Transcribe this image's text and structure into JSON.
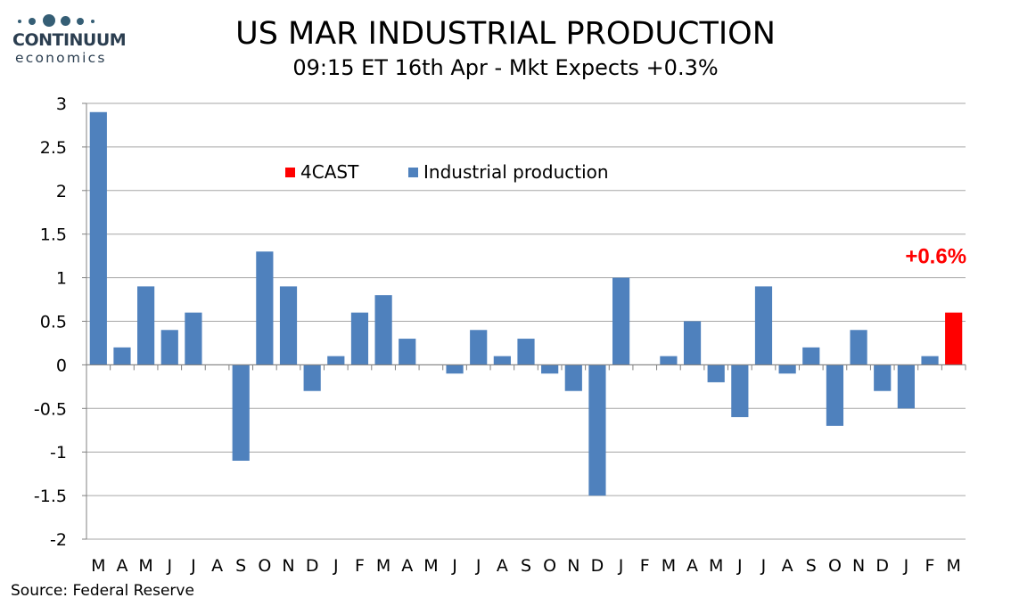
{
  "logo": {
    "brand_name": "CONTINUUM",
    "brand_sub": "economics",
    "color": "#355e75"
  },
  "header": {
    "title": "US MAR INDUSTRIAL PRODUCTION",
    "subtitle": "09:15 ET 16th Apr - Mkt Expects +0.3%"
  },
  "footer": {
    "source": "Source: Federal Reserve"
  },
  "chart_data": {
    "type": "bar",
    "categories": [
      "M",
      "A",
      "M",
      "J",
      "J",
      "A",
      "S",
      "O",
      "N",
      "D",
      "J",
      "F",
      "M",
      "A",
      "M",
      "J",
      "J",
      "A",
      "S",
      "O",
      "N",
      "D",
      "J",
      "F",
      "M",
      "A",
      "M",
      "J",
      "J",
      "A",
      "S",
      "O",
      "N",
      "D",
      "J",
      "F",
      "M"
    ],
    "series": [
      {
        "name": "Industrial production",
        "color": "#4f81bd",
        "values": [
          2.9,
          0.2,
          0.9,
          0.4,
          0.6,
          0,
          -1.1,
          1.3,
          0.9,
          -0.3,
          0.1,
          0.6,
          0.8,
          0.3,
          0,
          -0.1,
          0.4,
          0.1,
          0.3,
          -0.1,
          -0.3,
          -1.5,
          1.0,
          0,
          0.1,
          0.5,
          -0.2,
          -0.6,
          0.9,
          -0.1,
          0.2,
          -0.7,
          0.4,
          -0.3,
          -0.5,
          0.1,
          null
        ]
      },
      {
        "name": "4CAST",
        "color": "#ff0000",
        "values": [
          null,
          null,
          null,
          null,
          null,
          null,
          null,
          null,
          null,
          null,
          null,
          null,
          null,
          null,
          null,
          null,
          null,
          null,
          null,
          null,
          null,
          null,
          null,
          null,
          null,
          null,
          null,
          null,
          null,
          null,
          null,
          null,
          null,
          null,
          null,
          null,
          0.6
        ]
      }
    ],
    "ylim": [
      -2,
      3
    ],
    "yticks": [
      3,
      2.5,
      2,
      1.5,
      1,
      0.5,
      0,
      -0.5,
      -1,
      -1.5,
      -2
    ],
    "grid": true,
    "legend_position": "top-center",
    "annotation": {
      "text": "+0.6%",
      "color": "#ff0000"
    }
  }
}
